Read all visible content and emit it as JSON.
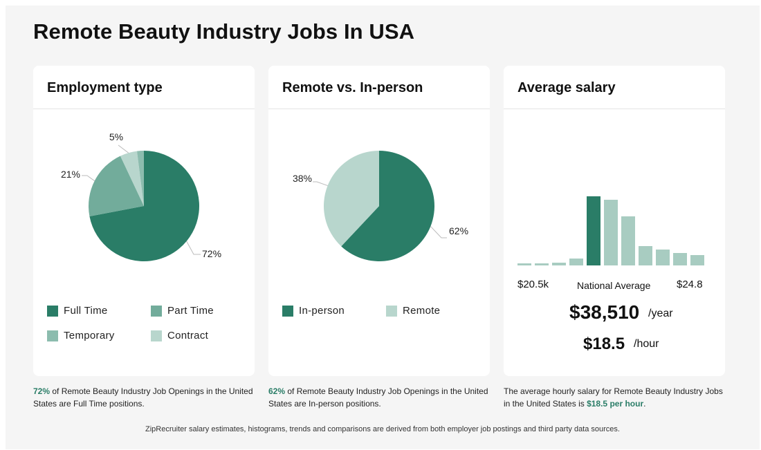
{
  "page": {
    "title": "Remote Beauty Industry Jobs In USA"
  },
  "colors": {
    "c1": "#2a7d67",
    "c2": "#72ac9b",
    "c3": "#8cbcae",
    "c4": "#b8d6cd",
    "accent": "#2a7d67"
  },
  "cards": {
    "employment": {
      "title": "Employment type",
      "legend": [
        "Full Time",
        "Part Time",
        "Temporary",
        "Contract"
      ],
      "note_pct": "72%",
      "note_text": " of Remote Beauty Industry Job Openings in the United States are Full Time positions."
    },
    "remote": {
      "title": "Remote vs. In-person",
      "legend": [
        "In-person",
        "Remote"
      ],
      "note_pct": "62%",
      "note_text": " of Remote Beauty Industry Job Openings in the United States are In-person positions."
    },
    "salary": {
      "title": "Average salary",
      "min_label": "$20.5k",
      "mid_label": "National Average",
      "max_label": "$24.8",
      "yearly": "$38,510",
      "yearly_unit": "/year",
      "hourly": "$18.5",
      "hourly_unit": "/hour",
      "note_text": "The average hourly salary for Remote Beauty Industry Jobs in the United States is ",
      "note_hl": "$18.5 per hour",
      "note_end": "."
    }
  },
  "footer": "ZipRecruiter salary estimates, histograms, trends and comparisons are derived from both employer job postings and third party data sources.",
  "chart_data": [
    {
      "type": "pie",
      "title": "Employment type",
      "categories": [
        "Full Time",
        "Part Time",
        "Temporary",
        "Contract"
      ],
      "values": [
        72,
        21,
        5,
        2
      ],
      "labels": [
        "72%",
        "21%",
        "5%",
        ""
      ],
      "colors": [
        "#2a7d67",
        "#72ac9b",
        "#b8d6cd",
        "#8cbcae"
      ]
    },
    {
      "type": "pie",
      "title": "Remote vs. In-person",
      "categories": [
        "In-person",
        "Remote"
      ],
      "values": [
        62,
        38
      ],
      "labels": [
        "62%",
        "38%"
      ],
      "colors": [
        "#2a7d67",
        "#b8d6cd"
      ]
    },
    {
      "type": "bar",
      "title": "Average salary",
      "values": [
        3,
        3,
        4,
        10,
        100,
        95,
        71,
        28,
        23,
        18,
        15
      ],
      "highlight_index": 4,
      "highlight_color": "#2a7d67",
      "base_color": "#a8ccc1"
    }
  ]
}
